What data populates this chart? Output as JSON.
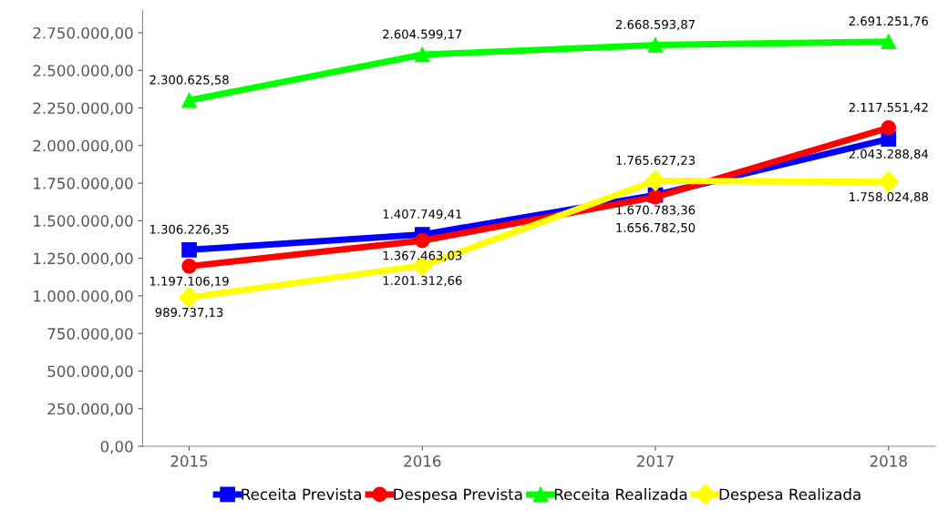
{
  "chart_data": {
    "type": "line",
    "categories": [
      "2015",
      "2016",
      "2017",
      "2018"
    ],
    "series": [
      {
        "name": "Receita Prevista",
        "color": "#0000ff",
        "marker": "square",
        "values": [
          1306226.35,
          1407749.41,
          1670783.36,
          2043288.84
        ],
        "value_labels": [
          "1.306.226,35",
          "1.407.749,41",
          "1.670.783,36",
          "2.043.288,84"
        ]
      },
      {
        "name": "Despesa Prevista",
        "color": "#ff0000",
        "marker": "circle",
        "values": [
          1197106.19,
          1367463.03,
          1656782.5,
          2117551.42
        ],
        "value_labels": [
          "1.197.106,19",
          "1.367.463,03",
          "1.656.782,50",
          "2.117.551,42"
        ]
      },
      {
        "name": "Receita Realizada",
        "color": "#00ff00",
        "marker": "triangle",
        "values": [
          2300625.58,
          2604599.17,
          2668593.87,
          2691251.76
        ],
        "value_labels": [
          "2.300.625,58",
          "2.604.599,17",
          "2.668.593,87",
          "2.691.251,76"
        ]
      },
      {
        "name": "Despesa Realizada",
        "color": "#ffff00",
        "marker": "diamond",
        "values": [
          989737.13,
          1201312.66,
          1765627.23,
          1758024.88
        ],
        "value_labels": [
          "989.737,13",
          "1.201.312,66",
          "1.765.627,23",
          "1.758.024,88"
        ]
      }
    ],
    "ylim": [
      0,
      2900000
    ],
    "yticks": [
      {
        "value": 0,
        "label": "0,00"
      },
      {
        "value": 250000,
        "label": "250.000,00"
      },
      {
        "value": 500000,
        "label": "500.000,00"
      },
      {
        "value": 750000,
        "label": "750.000,00"
      },
      {
        "value": 1000000,
        "label": "1.000.000,00"
      },
      {
        "value": 1250000,
        "label": "1.250.000,00"
      },
      {
        "value": 1500000,
        "label": "1.500.000,00"
      },
      {
        "value": 1750000,
        "label": "1.750.000,00"
      },
      {
        "value": 2000000,
        "label": "2.000.000,00"
      },
      {
        "value": 2250000,
        "label": "2.250.000,00"
      },
      {
        "value": 2500000,
        "label": "2.500.000,00"
      },
      {
        "value": 2750000,
        "label": "2.750.000,00"
      }
    ],
    "grid": false,
    "legend": "bottom",
    "line_style": "solid"
  }
}
